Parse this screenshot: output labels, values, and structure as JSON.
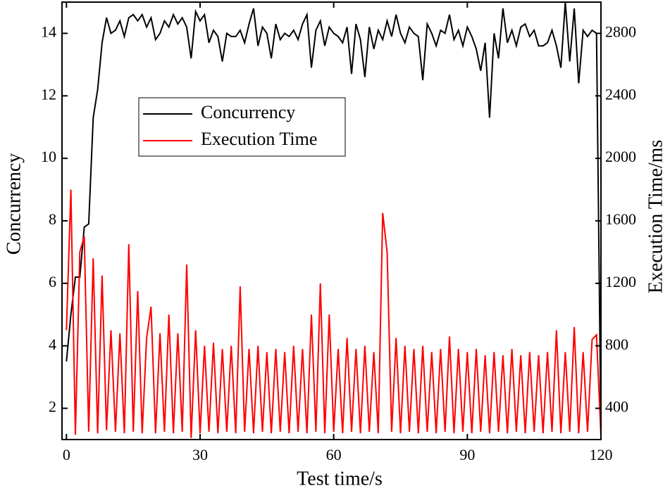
{
  "chart_data": {
    "type": "line",
    "xlabel": "Test time/s",
    "ylabel": "Concurrency",
    "y2label": "Execution Time/ms",
    "xlim": [
      -1,
      120
    ],
    "xticks": [
      0,
      30,
      60,
      90,
      120
    ],
    "ylim": [
      1,
      15
    ],
    "yticks": [
      2,
      4,
      6,
      8,
      10,
      12,
      14
    ],
    "y2lim": [
      200,
      3000
    ],
    "y2ticks": [
      400,
      800,
      1200,
      1600,
      2000,
      2400,
      2800
    ],
    "legend": "upper left",
    "x": [
      0,
      1,
      2,
      3,
      4,
      5,
      6,
      7,
      8,
      9,
      10,
      11,
      12,
      13,
      14,
      15,
      16,
      17,
      18,
      19,
      20,
      21,
      22,
      23,
      24,
      25,
      26,
      27,
      28,
      29,
      30,
      31,
      32,
      33,
      34,
      35,
      36,
      37,
      38,
      39,
      40,
      41,
      42,
      43,
      44,
      45,
      46,
      47,
      48,
      49,
      50,
      51,
      52,
      53,
      54,
      55,
      56,
      57,
      58,
      59,
      60,
      61,
      62,
      63,
      64,
      65,
      66,
      67,
      68,
      69,
      70,
      71,
      72,
      73,
      74,
      75,
      76,
      77,
      78,
      79,
      80,
      81,
      82,
      83,
      84,
      85,
      86,
      87,
      88,
      89,
      90,
      91,
      92,
      93,
      94,
      95,
      96,
      97,
      98,
      99,
      100,
      101,
      102,
      103,
      104,
      105,
      106,
      107,
      108,
      109,
      110,
      111,
      112,
      113,
      114,
      115,
      116,
      117,
      118,
      119,
      120
    ],
    "series": [
      {
        "name": "Concurrency",
        "color": "#000000",
        "axis": "y",
        "values": [
          3.5,
          5.0,
          6.2,
          6.2,
          7.8,
          7.9,
          11.3,
          12.2,
          13.7,
          14.5,
          14.0,
          14.1,
          14.4,
          13.9,
          14.5,
          14.6,
          14.4,
          14.6,
          14.2,
          14.5,
          13.8,
          14.0,
          14.4,
          14.2,
          14.6,
          14.3,
          14.5,
          14.2,
          13.2,
          14.7,
          14.4,
          14.6,
          13.7,
          14.1,
          13.9,
          13.1,
          14.0,
          13.9,
          13.9,
          14.1,
          13.7,
          14.3,
          14.8,
          13.6,
          14.2,
          14.0,
          13.2,
          14.3,
          13.8,
          14.0,
          13.9,
          14.1,
          13.8,
          14.3,
          14.6,
          12.9,
          14.1,
          14.4,
          13.6,
          14.2,
          14.0,
          13.9,
          13.7,
          14.2,
          12.7,
          14.3,
          13.8,
          12.6,
          14.2,
          13.5,
          14.1,
          13.8,
          14.4,
          13.9,
          14.6,
          14.0,
          13.7,
          14.2,
          14.0,
          13.9,
          12.5,
          14.3,
          14.0,
          13.6,
          14.1,
          14.0,
          14.6,
          13.8,
          14.1,
          13.6,
          14.2,
          13.9,
          13.5,
          12.8,
          13.7,
          11.3,
          14.0,
          13.2,
          14.8,
          13.7,
          14.1,
          13.6,
          14.2,
          14.3,
          13.9,
          14.1,
          13.6,
          13.6,
          13.7,
          14.1,
          13.6,
          12.9,
          15.0,
          13.1,
          14.8,
          12.4,
          14.1,
          13.9,
          14.1,
          14.0,
          1.2
        ]
      },
      {
        "name": "Execution Time",
        "color": "#ff0000",
        "axis": "y2",
        "values": [
          900,
          1800,
          230,
          1400,
          1500,
          250,
          1360,
          240,
          1250,
          260,
          900,
          250,
          880,
          240,
          1450,
          250,
          1150,
          240,
          850,
          1050,
          240,
          880,
          250,
          1000,
          240,
          880,
          250,
          1320,
          210,
          900,
          240,
          800,
          250,
          820,
          240,
          780,
          250,
          800,
          240,
          1180,
          250,
          780,
          240,
          800,
          250,
          760,
          240,
          780,
          250,
          760,
          240,
          800,
          250,
          780,
          240,
          1000,
          250,
          1200,
          240,
          1000,
          250,
          780,
          240,
          850,
          250,
          780,
          240,
          800,
          250,
          760,
          240,
          1650,
          1400,
          250,
          850,
          240,
          800,
          250,
          780,
          240,
          800,
          250,
          760,
          240,
          780,
          250,
          860,
          240,
          780,
          250,
          760,
          240,
          780,
          250,
          740,
          240,
          760,
          250,
          740,
          240,
          780,
          250,
          740,
          240,
          760,
          250,
          740,
          240,
          760,
          250,
          900,
          240,
          760,
          250,
          920,
          240,
          760,
          250,
          840,
          870,
          220
        ]
      }
    ]
  }
}
